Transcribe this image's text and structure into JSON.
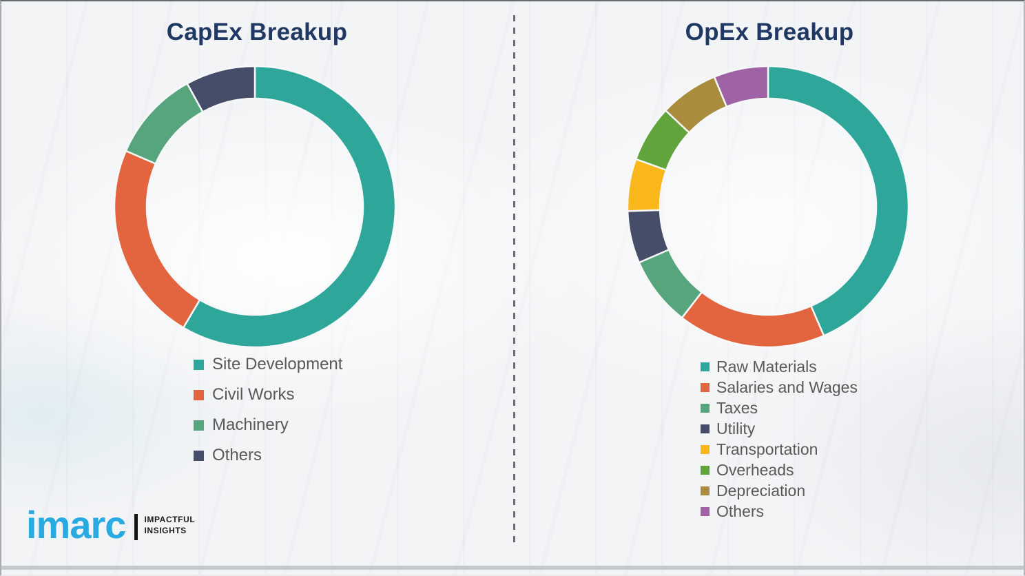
{
  "page": {
    "background_color": "#f3f4f6",
    "title_color": "#1f3864",
    "legend_text_color": "#595959",
    "divider_color": "#6a6c6f",
    "segment_gap_color": "#f7f8fa"
  },
  "logo": {
    "brand": "imarc",
    "brand_color": "#29abe2",
    "tagline_line1": "IMPACTFUL",
    "tagline_line2": "INSIGHTS"
  },
  "chart_data": [
    {
      "type": "pie",
      "variant": "donut",
      "title": "CapEx Breakup",
      "legend_position": "below-left",
      "categories": [
        "Site Development",
        "Civil Works",
        "Machinery",
        "Others"
      ],
      "values": [
        58.5,
        23,
        10.5,
        8
      ],
      "colors": [
        "#2fa69a",
        "#e2653f",
        "#57a57c",
        "#454d68"
      ],
      "start_angle_deg": 0,
      "direction": "clockwise",
      "values_note": "percent, estimated from arc lengths (no labels shown)"
    },
    {
      "type": "pie",
      "variant": "donut",
      "title": "OpEx Breakup",
      "legend_position": "below-left",
      "categories": [
        "Raw Materials",
        "Salaries and Wages",
        "Taxes",
        "Utility",
        "Transportation",
        "Overheads",
        "Depreciation",
        "Others"
      ],
      "values": [
        43.5,
        17,
        8,
        6,
        6,
        6.5,
        6.75,
        6.25
      ],
      "colors": [
        "#2fa69a",
        "#e2653f",
        "#57a57c",
        "#454d68",
        "#fab71c",
        "#61a43c",
        "#a98c3e",
        "#9f63a5"
      ],
      "start_angle_deg": 0,
      "direction": "clockwise",
      "values_note": "percent, estimated from arc lengths (no labels shown)"
    }
  ]
}
